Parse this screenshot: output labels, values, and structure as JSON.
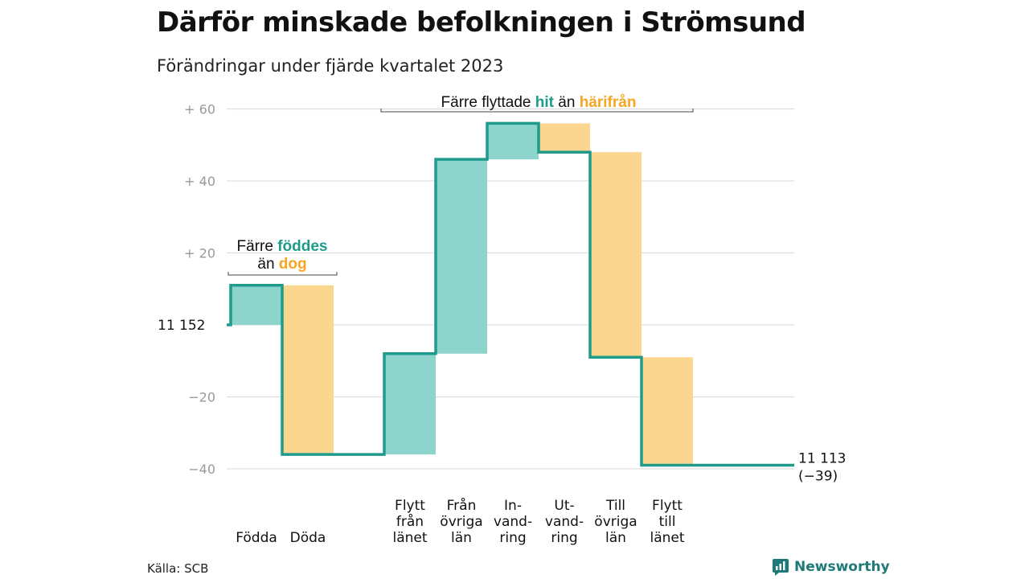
{
  "title": "Därför minskade befolkningen i Strömsund",
  "subtitle": "Förändringar under fjärde kvartalet 2023",
  "source": "Källa: SCB",
  "brand": "Newsworthy",
  "colors": {
    "teal": "#1f9b8c",
    "teal_fill": "#8dd5cc",
    "orange": "#f5a623",
    "orange_fill": "#fad68f",
    "grid": "#dddddd",
    "tick": "#999999"
  },
  "chart_data": {
    "type": "waterfall",
    "start_label": "11  152",
    "end_label": [
      "11 113",
      "(−39)"
    ],
    "start_value": 11152,
    "end_value": 11113,
    "y_ticks": [
      {
        "value": 60,
        "label": "+  60"
      },
      {
        "value": 40,
        "label": "+  40"
      },
      {
        "value": 20,
        "label": "+  20"
      },
      {
        "value": -20,
        "label": "−20"
      },
      {
        "value": -40,
        "label": "−40"
      }
    ],
    "ylim": [
      -40,
      60
    ],
    "groups": [
      {
        "annotation": [
          [
            "Färre ",
            "dark"
          ],
          [
            "föddes",
            "teal"
          ],
          [
            "\n",
            "break"
          ],
          [
            "än ",
            "dark"
          ],
          [
            "dog",
            "orange"
          ]
        ],
        "steps": [
          {
            "label": [
              "Födda"
            ],
            "value": 11,
            "kind": "in"
          },
          {
            "label": [
              "Döda"
            ],
            "value": -47,
            "kind": "out"
          }
        ]
      },
      {
        "annotation": [
          [
            "Färre flyttade ",
            "dark"
          ],
          [
            "hit",
            "teal"
          ],
          [
            " än ",
            "dark"
          ],
          [
            "härifrån",
            "orange"
          ]
        ],
        "steps": [
          {
            "label": [
              "Flytt",
              "från",
              "länet"
            ],
            "value": 28,
            "kind": "in"
          },
          {
            "label": [
              "Från",
              "övriga",
              "län"
            ],
            "value": 54,
            "kind": "in"
          },
          {
            "label": [
              "In-",
              "vand-",
              "ring"
            ],
            "value": 10,
            "kind": "in"
          },
          {
            "label": [
              "Ut-",
              "vand-",
              "ring"
            ],
            "value": -8,
            "kind": "out"
          },
          {
            "label": [
              "Till",
              "övriga",
              "län"
            ],
            "value": -57,
            "kind": "out"
          },
          {
            "label": [
              "Flytt",
              "till",
              "länet"
            ],
            "value": -30,
            "kind": "out"
          }
        ]
      }
    ]
  }
}
